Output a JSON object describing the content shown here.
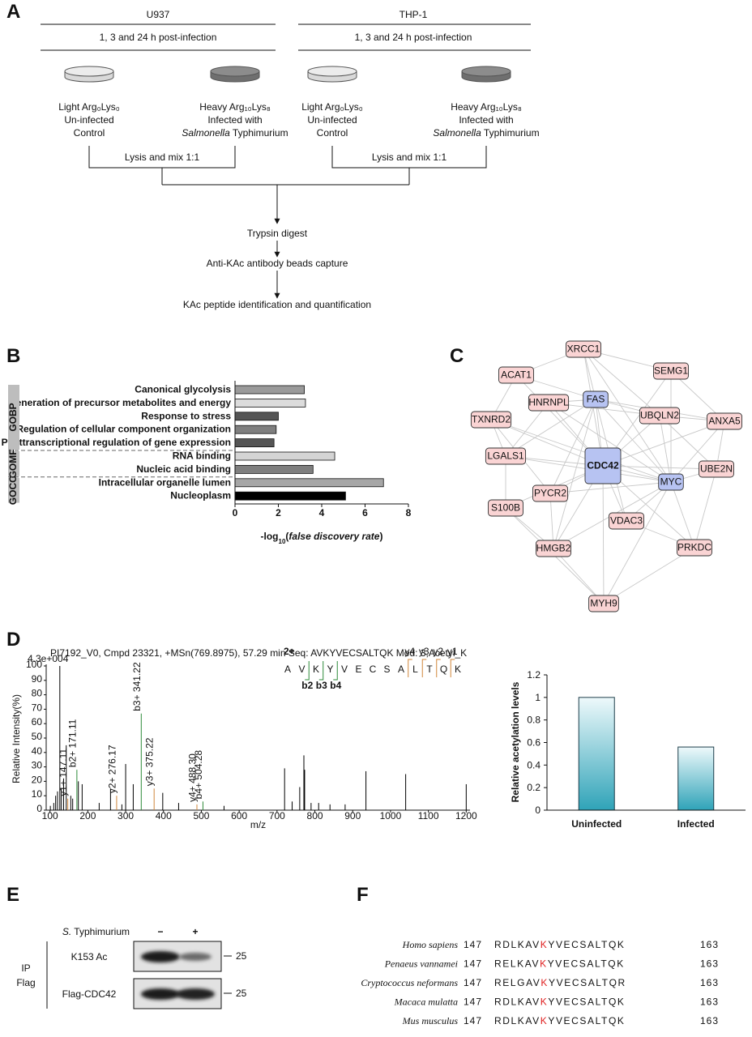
{
  "panel_labels": [
    "A",
    "B",
    "C",
    "D",
    "E",
    "F"
  ],
  "workflow": {
    "cell_lines": [
      {
        "name": "U937",
        "timepoints": "1, 3 and 24 h post-infection",
        "light": [
          "Light Arg₀Lys₀",
          "Un-infected",
          "Control"
        ],
        "heavy": [
          "Heavy Arg₁₀Lys₈",
          "Infected with"
        ],
        "organism": "Salmonella",
        "organism_rest": " Typhimurium",
        "mix": "Lysis and mix 1:1"
      },
      {
        "name": "THP-1",
        "timepoints": "1, 3 and 24 h post-infection",
        "light": [
          "Light Arg₀Lys₀",
          "Un-infected",
          "Control"
        ],
        "heavy": [
          "Heavy Arg₁₀Lys₈",
          "Infected with"
        ],
        "organism": "Salmonella",
        "organism_rest": " Typhimurium",
        "mix": "Lysis and mix 1:1"
      }
    ],
    "steps": [
      "Trypsin digest",
      "Anti-KAc antibody beads capture",
      "KAc peptide identification and quantification"
    ]
  },
  "chart_data": [
    {
      "type": "hbar",
      "groups": [
        {
          "name": "GOBP",
          "categories": [
            "Canonical glycolysis",
            "Generation of precursor metabolites and energy",
            "Response to stress",
            "Regulation of cellular component organization",
            "Posttranscriptional regulation of gene expression"
          ],
          "values": [
            3.2,
            3.25,
            2.0,
            1.9,
            1.8
          ],
          "colors": [
            "#9a9a9a",
            "#dcdcdc",
            "#555555",
            "#7f7f7f",
            "#555555"
          ]
        },
        {
          "name": "GOMF",
          "categories": [
            "RNA binding",
            "Nucleic acid binding"
          ],
          "values": [
            4.6,
            3.6
          ],
          "colors": [
            "#d4d4d4",
            "#7f7f7f"
          ]
        },
        {
          "name": "GOCC",
          "categories": [
            "Intracellular organelle lumen",
            "Nucleoplasm"
          ],
          "values": [
            6.85,
            5.1
          ],
          "colors": [
            "#a6a6a6",
            "#000000"
          ]
        }
      ],
      "xlabel_parts": [
        "-log",
        "10",
        "(",
        "false discovery rate",
        ")"
      ],
      "xlim": [
        0,
        8
      ],
      "xticks": [
        0,
        2,
        4,
        6,
        8
      ]
    },
    {
      "type": "spectrum",
      "header": "PI7192_V0, Cmpd 23321, +MSn(769.8975), 57.29 min    Seq: AVKYVECSALTQK    Mod: 3,Acetyl_K",
      "scale_label": "4.3e+004",
      "ylabel": "Relative Intensity(%)",
      "xlabel": "m/z",
      "xlim": [
        90,
        1210
      ],
      "xticks": [
        100,
        200,
        300,
        400,
        500,
        600,
        700,
        800,
        900,
        1000,
        1100,
        1200
      ],
      "ylim": [
        0,
        100
      ],
      "yticks": [
        0,
        10,
        20,
        30,
        40,
        50,
        60,
        70,
        80,
        90,
        100
      ],
      "x": [
        101,
        110,
        115,
        120,
        126,
        130,
        136,
        143,
        147.11,
        155,
        160,
        171.11,
        175,
        185,
        230,
        260,
        276.17,
        290,
        300,
        320,
        341.22,
        375.22,
        398,
        440,
        488.3,
        504.28,
        560,
        720,
        740,
        760,
        771,
        773,
        790,
        810,
        840,
        880,
        935,
        1040,
        1200
      ],
      "values": [
        3,
        5,
        10,
        13,
        100,
        15,
        22,
        45,
        8,
        10,
        8,
        28,
        20,
        18,
        5,
        15,
        10,
        4,
        32,
        18,
        67,
        15,
        12,
        5,
        4,
        6,
        3,
        29,
        6,
        16,
        38,
        28,
        5,
        5,
        4,
        4,
        27,
        25,
        18
      ],
      "colors": [
        "#000",
        "#000",
        "#000",
        "#000",
        "#000",
        "#000",
        "#000",
        "#000",
        "#d0873c",
        "#000",
        "#000",
        "#2e8b3a",
        "#000",
        "#000",
        "#000",
        "#000",
        "#d0873c",
        "#000",
        "#000",
        "#000",
        "#2e8b3a",
        "#d0873c",
        "#000",
        "#000",
        "#d0873c",
        "#2e8b3a",
        "#000",
        "#000",
        "#000",
        "#000",
        "#000",
        "#000",
        "#000",
        "#000",
        "#000",
        "#000",
        "#000",
        "#000",
        "#000"
      ],
      "peak_labels": [
        null,
        null,
        null,
        null,
        null,
        null,
        null,
        null,
        "y1+ 147.11",
        null,
        null,
        "b2+ 171.11",
        null,
        null,
        null,
        null,
        "y2+ 276.17",
        null,
        null,
        null,
        "b3+ 341.22",
        "y3+ 375.22",
        null,
        null,
        "y4+ 488.30",
        "b4+ 504.28",
        null,
        null,
        null,
        null,
        null,
        null,
        null,
        null,
        null,
        null,
        null,
        null,
        null
      ],
      "peptide": {
        "charge": "2+",
        "before": [
          "A",
          "V"
        ],
        "site": "K",
        "after": [
          "Y",
          "V",
          "E",
          "C",
          "S",
          "A",
          "L",
          "T",
          "Q",
          "K"
        ],
        "y_ions": [
          "y4",
          "y3",
          "y2",
          "y1"
        ],
        "b_ions": [
          "b2",
          "b3",
          "b4"
        ],
        "site_color": "#d62020",
        "y_color": "#d0873c",
        "b_color": "#2e8b3a"
      }
    },
    {
      "type": "bar",
      "ylabel": "Relative acetylation levels",
      "categories": [
        "Uninfected",
        "Infected"
      ],
      "values": [
        1,
        0.56
      ],
      "ylim": [
        0,
        1.2
      ],
      "yticks": [
        0,
        0.2,
        0.4,
        0.6,
        0.8,
        1,
        1.2
      ],
      "color": "#2fa3b8"
    }
  ],
  "network": {
    "nodes": [
      {
        "label": "XRCC1",
        "color": "#fad4d4"
      },
      {
        "label": "SEMG1",
        "color": "#fad4d4"
      },
      {
        "label": "ACAT1",
        "color": "#fad4d4"
      },
      {
        "label": "HNRNPL",
        "color": "#fad4d4"
      },
      {
        "label": "FAS",
        "color": "#b7c3f2"
      },
      {
        "label": "UBQLN2",
        "color": "#fad4d4"
      },
      {
        "label": "ANXA5",
        "color": "#fad4d4"
      },
      {
        "label": "TXNRD2",
        "color": "#fad4d4"
      },
      {
        "label": "LGALS1",
        "color": "#fad4d4"
      },
      {
        "label": "CDC42",
        "color": "#b7c3f2"
      },
      {
        "label": "MYC",
        "color": "#b7c3f2"
      },
      {
        "label": "UBE2N",
        "color": "#fad4d4"
      },
      {
        "label": "PYCR2",
        "color": "#fad4d4"
      },
      {
        "label": "S100B",
        "color": "#fad4d4"
      },
      {
        "label": "VDAC3",
        "color": "#fad4d4"
      },
      {
        "label": "HMGB2",
        "color": "#fad4d4"
      },
      {
        "label": "PRKDC",
        "color": "#fad4d4"
      },
      {
        "label": "MYH9",
        "color": "#fad4d4"
      }
    ]
  },
  "blot": {
    "treatment_prefix": "S.",
    "treatment_rest": " Typhimurium",
    "levels": [
      "−",
      "+"
    ],
    "rows": [
      {
        "label": "K153 Ac",
        "marker": "25"
      },
      {
        "label": "Flag-CDC42",
        "marker": "25"
      }
    ],
    "ip": [
      "IP",
      "Flag"
    ]
  },
  "alignment": [
    {
      "species": "Homo sapiens",
      "start": 147,
      "before": "RDLKAV",
      "site": "K",
      "after": "YVECSALTQK",
      "end": 163
    },
    {
      "species": "Penaeus vannamei",
      "start": 147,
      "before": "RELKAV",
      "site": "K",
      "after": "YVECSALTQK",
      "end": 163
    },
    {
      "species": "Cryptococcus neformans",
      "start": 147,
      "before": "RELGAV",
      "site": "K",
      "after": "YVECSALTQR",
      "end": 163
    },
    {
      "species": "Macaca mulatta",
      "start": 147,
      "before": "RDLKAV",
      "site": "K",
      "after": "YVECSALTQK",
      "end": 163
    },
    {
      "species": "Mus musculus",
      "start": 147,
      "before": "RDLKAV",
      "site": "K",
      "after": "YVECSALTQK",
      "end": 163
    }
  ]
}
